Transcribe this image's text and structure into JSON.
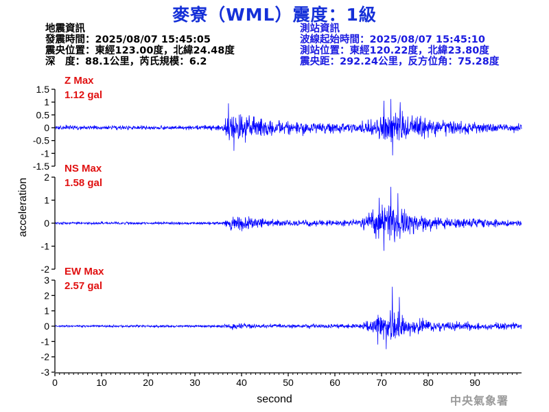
{
  "title": "麥寮（WML）震度：1級",
  "quake_info": {
    "heading": "地震資訊",
    "origin_time": "發震時間：2025/08/07 15:45:05",
    "epicenter": "震央位置：東經123.00度，北緯24.48度",
    "depth_magnitude": "深　度：88.1公里，芮氏規模：6.2"
  },
  "station_info": {
    "heading": "測站資訊",
    "wave_start": "波線起始時間：2025/08/07 15:45:10",
    "location": "測站位置：東經120.22度，北緯23.80度",
    "distance": "震央距：292.24公里，反方位角：75.28度"
  },
  "footer": "中央氣象署",
  "colors": {
    "title": "#1530d8",
    "trace": "#0000ff",
    "max_label": "#e01010",
    "station_text": "#1a1ae0"
  },
  "chart_data": {
    "type": "line",
    "xlabel": "second",
    "ylabel": "acceleration",
    "xlim": [
      0,
      100
    ],
    "x_ticks": [
      0,
      10,
      20,
      30,
      40,
      50,
      60,
      70,
      80,
      90
    ],
    "grid": false,
    "panels": [
      {
        "component": "Z",
        "max_label": "Z Max",
        "max_value": "1.12 gal",
        "ylim": [
          -1.5,
          1.5
        ],
        "y_ticks": [
          -1.5,
          -1,
          -0.5,
          0,
          0.5,
          1,
          1.5
        ],
        "y_tick_labels": [
          "-1.5",
          "-1",
          "-0.5",
          "0",
          "0.5",
          "1",
          "1.5"
        ],
        "envelope": {
          "x": [
            0,
            10,
            20,
            30,
            36,
            37,
            38,
            40,
            45,
            50,
            55,
            60,
            65,
            68,
            70,
            72,
            74,
            76,
            80,
            85,
            90,
            95,
            100
          ],
          "amp": [
            0.12,
            0.12,
            0.12,
            0.12,
            0.15,
            0.7,
            0.9,
            0.75,
            0.5,
            0.4,
            0.35,
            0.3,
            0.3,
            0.45,
            0.75,
            1.0,
            0.85,
            0.7,
            0.5,
            0.4,
            0.3,
            0.25,
            0.22
          ]
        },
        "peaks": [
          {
            "x": 37.2,
            "y": 0.95
          },
          {
            "x": 38.4,
            "y": -0.9
          },
          {
            "x": 70.5,
            "y": 1.05
          },
          {
            "x": 72.0,
            "y": 1.12
          },
          {
            "x": 72.4,
            "y": -1.08
          },
          {
            "x": 74.0,
            "y": 1.0
          }
        ]
      },
      {
        "component": "NS",
        "max_label": "NS Max",
        "max_value": "1.58 gal",
        "ylim": [
          -2,
          2
        ],
        "y_ticks": [
          -2,
          -1,
          0,
          1,
          2
        ],
        "y_tick_labels": [
          "-2",
          "-1",
          "0",
          "1",
          "2"
        ],
        "envelope": {
          "x": [
            0,
            10,
            20,
            30,
            36,
            37,
            38,
            40,
            45,
            50,
            55,
            60,
            65,
            68,
            70,
            72,
            74,
            76,
            80,
            85,
            90,
            95,
            100
          ],
          "amp": [
            0.08,
            0.08,
            0.08,
            0.08,
            0.1,
            0.35,
            0.45,
            0.4,
            0.28,
            0.2,
            0.2,
            0.18,
            0.2,
            0.7,
            1.0,
            1.3,
            1.0,
            0.7,
            0.45,
            0.35,
            0.28,
            0.22,
            0.2
          ]
        },
        "peaks": [
          {
            "x": 72.0,
            "y": 1.58
          },
          {
            "x": 70.5,
            "y": -1.2
          },
          {
            "x": 73.5,
            "y": 1.3
          },
          {
            "x": 69.5,
            "y": 1.1
          }
        ]
      },
      {
        "component": "EW",
        "max_label": "EW Max",
        "max_value": "2.57 gal",
        "ylim": [
          -3,
          3
        ],
        "y_ticks": [
          -3,
          -2,
          -1,
          0,
          1,
          2,
          3
        ],
        "y_tick_labels": [
          "-3",
          "-2",
          "-1",
          "0",
          "1",
          "2",
          "3"
        ],
        "envelope": {
          "x": [
            0,
            10,
            20,
            30,
            36,
            37,
            38,
            40,
            45,
            50,
            55,
            60,
            65,
            68,
            70,
            72,
            74,
            76,
            80,
            85,
            90,
            95,
            100
          ],
          "amp": [
            0.1,
            0.1,
            0.1,
            0.1,
            0.12,
            0.2,
            0.28,
            0.25,
            0.2,
            0.18,
            0.2,
            0.2,
            0.25,
            0.7,
            1.2,
            1.7,
            1.3,
            0.9,
            0.6,
            0.45,
            0.35,
            0.3,
            0.3
          ]
        },
        "peaks": [
          {
            "x": 72.3,
            "y": 2.57
          },
          {
            "x": 71.0,
            "y": -1.5
          },
          {
            "x": 73.8,
            "y": 1.9
          },
          {
            "x": 69.2,
            "y": -1.2
          }
        ]
      }
    ]
  }
}
